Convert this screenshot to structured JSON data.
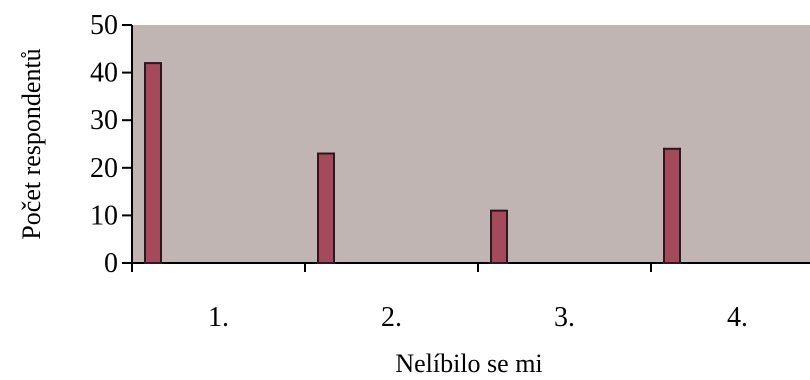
{
  "chart_data": {
    "type": "bar",
    "title": "",
    "xlabel": "Nelíbilo se mi",
    "ylabel": "Počet respondentů",
    "categories": [
      "1.",
      "2.",
      "3.",
      "4."
    ],
    "series": [
      {
        "values": [
          42,
          23,
          11,
          24
        ]
      }
    ],
    "ylim": [
      0,
      50
    ],
    "yticks": [
      0,
      10,
      20,
      30,
      40,
      50
    ],
    "grid": false,
    "legend": "none"
  },
  "colors": {
    "plot_background": "#C0B5B3",
    "bar_fill": "#A5495C",
    "bar_stroke": "#2A1A1E",
    "axis": "#000000"
  }
}
